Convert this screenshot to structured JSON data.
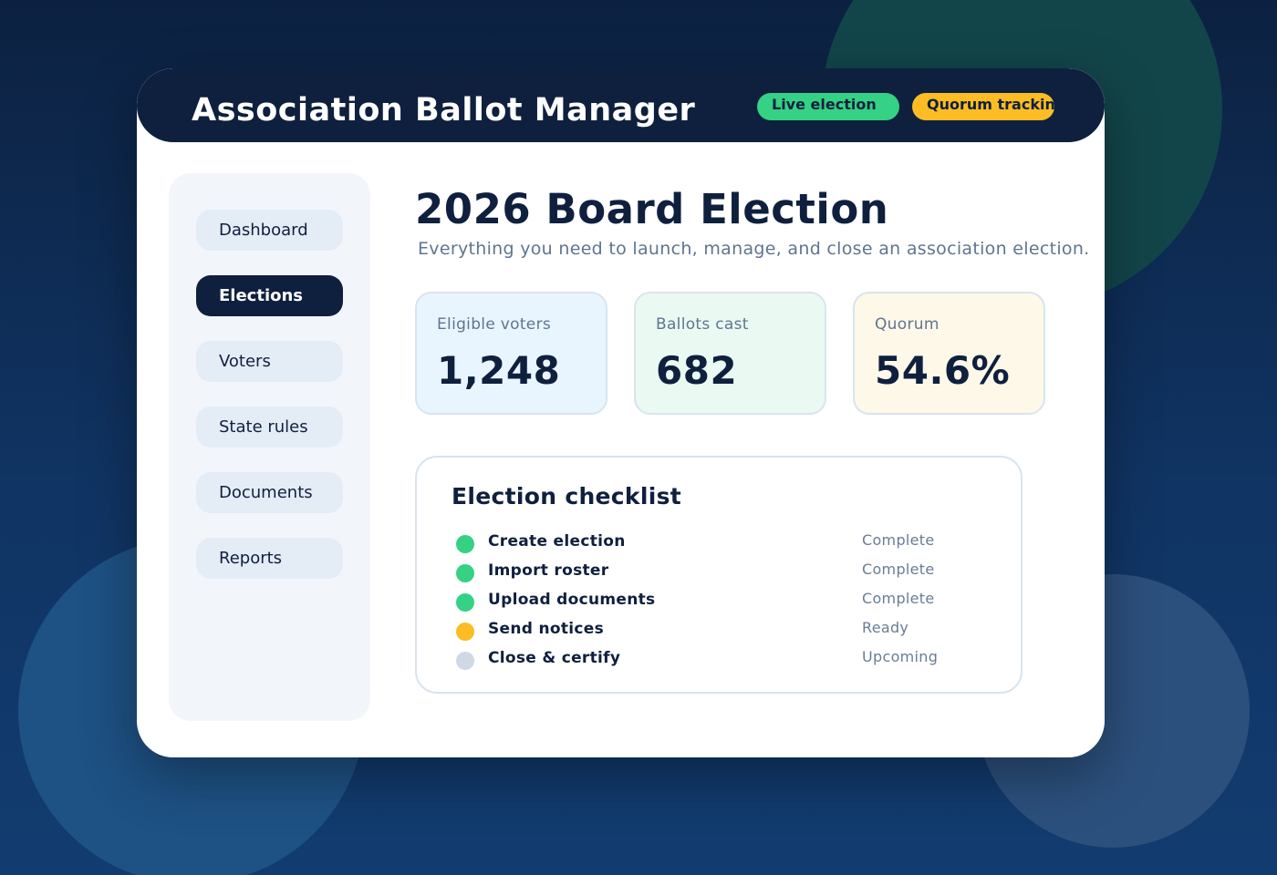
{
  "app": {
    "title": "Association Ballot Manager",
    "badges": [
      {
        "label": "Live election",
        "color": "#35d184"
      },
      {
        "label": "Quorum tracking",
        "color": "#fbbd23"
      }
    ]
  },
  "sidebar": {
    "items": [
      {
        "label": "Dashboard",
        "active": false
      },
      {
        "label": "Elections",
        "active": true
      },
      {
        "label": "Voters",
        "active": false
      },
      {
        "label": "State rules",
        "active": false
      },
      {
        "label": "Documents",
        "active": false
      },
      {
        "label": "Reports",
        "active": false
      }
    ]
  },
  "main": {
    "title": "2026 Board Election",
    "subtitle": "Everything you need to launch, manage, and close an association election.",
    "stats": [
      {
        "label": "Eligible voters",
        "value": "1,248"
      },
      {
        "label": "Ballots cast",
        "value": "682"
      },
      {
        "label": "Quorum",
        "value": "54.6%"
      }
    ],
    "checklist": {
      "title": "Election checklist",
      "items": [
        {
          "label": "Create election",
          "status": "Complete",
          "dot_color": "#35d184"
        },
        {
          "label": "Import roster",
          "status": "Complete",
          "dot_color": "#35d184"
        },
        {
          "label": "Upload documents",
          "status": "Complete",
          "dot_color": "#35d184"
        },
        {
          "label": "Send notices",
          "status": "Ready",
          "dot_color": "#fbbd23"
        },
        {
          "label": "Close & certify",
          "status": "Upcoming",
          "dot_color": "#cfd9e6"
        }
      ]
    }
  },
  "colors": {
    "brand_dark": "#0f203e",
    "success": "#35d184",
    "warning": "#fbbd23",
    "pending": "#cfd9e6"
  }
}
